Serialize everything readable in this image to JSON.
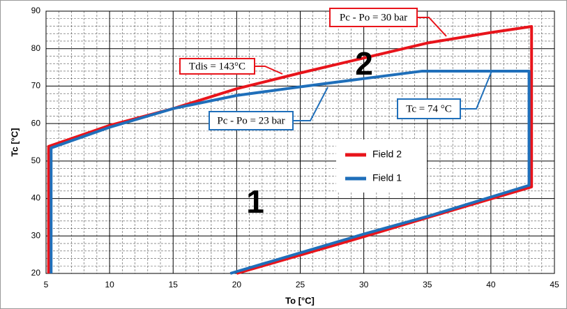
{
  "chart_data": {
    "type": "line",
    "x_label": "To [°C]",
    "y_label": "Tc [°C]",
    "xlim": [
      5,
      45
    ],
    "ylim": [
      20,
      90
    ],
    "xticks": [
      5,
      10,
      15,
      20,
      25,
      30,
      35,
      40,
      45
    ],
    "yticks": [
      20,
      30,
      40,
      50,
      60,
      70,
      80,
      90
    ],
    "grid": true,
    "series": [
      {
        "name": "Field 2",
        "color": "#e8141b",
        "x": [
          5.2,
          5.2,
          10,
          15,
          20,
          25,
          30,
          35,
          40,
          43.2,
          43.2,
          35,
          30,
          20
        ],
        "values": [
          20,
          53.9,
          59.5,
          64,
          69.3,
          73.5,
          77.5,
          81.5,
          84.3,
          85.9,
          43.1,
          34.9,
          29.8,
          20
        ]
      },
      {
        "name": "Field 1",
        "color": "#1f6fba",
        "x": [
          5.4,
          5.4,
          10,
          15,
          20,
          25,
          30,
          34.6,
          43,
          43,
          35,
          30,
          19.5
        ],
        "values": [
          20,
          53.5,
          59,
          64,
          67.5,
          69.8,
          72,
          74,
          74,
          43.5,
          35.2,
          30.5,
          20
        ]
      }
    ],
    "annotations": [
      {
        "text": "Pc - Po = 30 bar",
        "color": "#e8141b"
      },
      {
        "text": "Tdis = 143°C",
        "color": "#e8141b"
      },
      {
        "text": "Pc - Po = 23 bar",
        "color": "#1f6fba"
      },
      {
        "text": "Tc = 74 °C",
        "color": "#1f6fba"
      },
      {
        "text": "2"
      },
      {
        "text": "1"
      }
    ]
  }
}
